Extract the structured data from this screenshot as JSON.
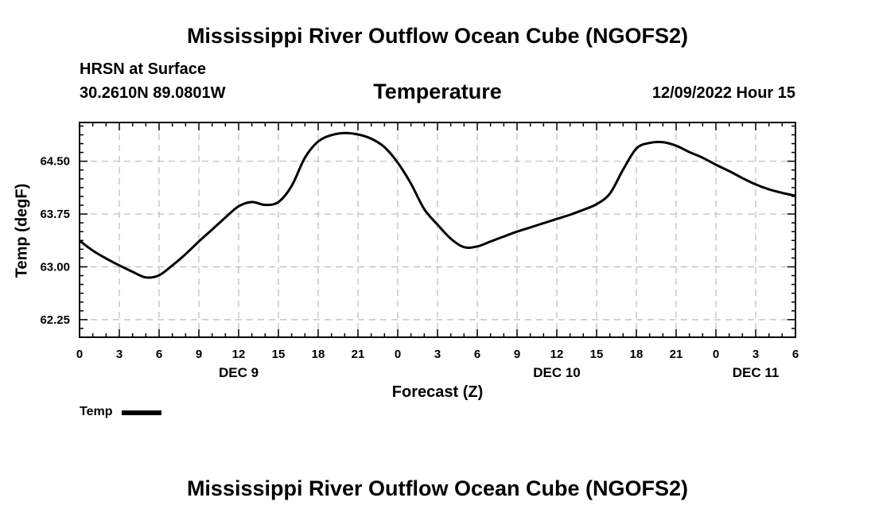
{
  "header": {
    "title": "Mississippi River Outflow Ocean Cube (NGOFS2)",
    "station": "HRSN at Surface",
    "coordinates": "30.2610N  89.0801W",
    "chart_title": "Temperature",
    "datetime": "12/09/2022 Hour 15"
  },
  "footer": {
    "title": "Mississippi River Outflow Ocean Cube (NGOFS2)"
  },
  "legend": {
    "label": "Temp"
  },
  "colors": {
    "line": "#000000",
    "grid": "#bbbbbb",
    "background": "#ffffff"
  },
  "chart_data": {
    "type": "line",
    "title": "Temperature",
    "xlabel": "Forecast (Z)",
    "ylabel": "Temp (degF)",
    "xlim": [
      0,
      54
    ],
    "ylim": [
      62.0,
      65.05
    ],
    "grid": true,
    "legend": "bottom-left",
    "x_ticks": [
      {
        "x": 0,
        "label": "0"
      },
      {
        "x": 3,
        "label": "3"
      },
      {
        "x": 6,
        "label": "6"
      },
      {
        "x": 9,
        "label": "9"
      },
      {
        "x": 12,
        "label": "12"
      },
      {
        "x": 15,
        "label": "15"
      },
      {
        "x": 18,
        "label": "18"
      },
      {
        "x": 21,
        "label": "21"
      },
      {
        "x": 24,
        "label": "0"
      },
      {
        "x": 27,
        "label": "3"
      },
      {
        "x": 30,
        "label": "6"
      },
      {
        "x": 33,
        "label": "9"
      },
      {
        "x": 36,
        "label": "12"
      },
      {
        "x": 39,
        "label": "15"
      },
      {
        "x": 42,
        "label": "18"
      },
      {
        "x": 45,
        "label": "21"
      },
      {
        "x": 48,
        "label": "0"
      },
      {
        "x": 51,
        "label": "3"
      },
      {
        "x": 54,
        "label": "6"
      }
    ],
    "day_labels": [
      {
        "x": 12,
        "label": "DEC 9"
      },
      {
        "x": 36,
        "label": "DEC 10"
      },
      {
        "x": 51,
        "label": "DEC 11"
      }
    ],
    "y_ticks": [
      {
        "y": 62.25,
        "label": "62.25"
      },
      {
        "y": 63.0,
        "label": "63.00"
      },
      {
        "y": 63.75,
        "label": "63.75"
      },
      {
        "y": 64.5,
        "label": "64.50"
      }
    ],
    "series": [
      {
        "name": "Temp",
        "x": [
          0,
          1,
          2,
          3,
          4,
          5,
          6,
          7,
          8,
          9,
          10,
          11,
          12,
          13,
          14,
          15,
          16,
          17,
          18,
          19,
          20,
          21,
          22,
          23,
          24,
          25,
          26,
          27,
          28,
          29,
          30,
          31,
          32,
          33,
          34,
          35,
          36,
          37,
          38,
          39,
          40,
          41,
          42,
          43,
          44,
          45,
          46,
          47,
          48,
          49,
          50,
          51,
          52,
          53,
          54
        ],
        "values": [
          63.37,
          63.23,
          63.12,
          63.02,
          62.93,
          62.85,
          62.88,
          63.02,
          63.18,
          63.36,
          63.53,
          63.7,
          63.86,
          63.92,
          63.88,
          63.92,
          64.15,
          64.55,
          64.78,
          64.87,
          64.9,
          64.88,
          64.82,
          64.7,
          64.48,
          64.18,
          63.82,
          63.6,
          63.4,
          63.28,
          63.29,
          63.36,
          63.43,
          63.5,
          63.56,
          63.62,
          63.68,
          63.74,
          63.81,
          63.89,
          64.04,
          64.38,
          64.68,
          64.76,
          64.77,
          64.72,
          64.63,
          64.55,
          64.45,
          64.36,
          64.26,
          64.17,
          64.1,
          64.05,
          64.01
        ]
      }
    ]
  }
}
